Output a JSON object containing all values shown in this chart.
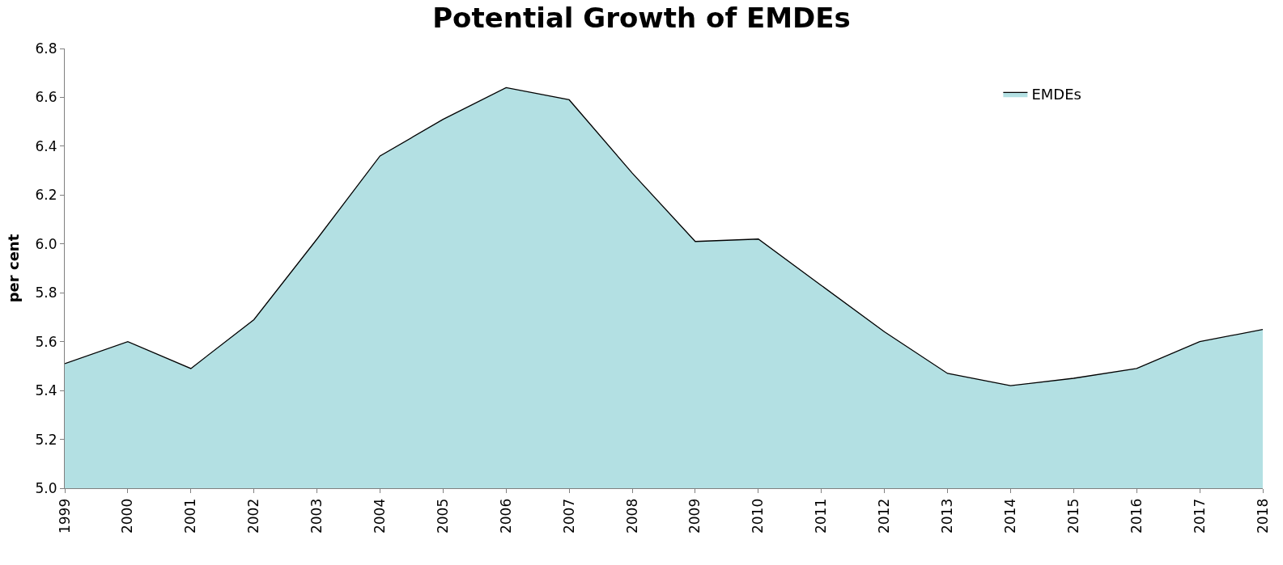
{
  "chart_data": {
    "type": "area",
    "title": "Potential Growth of EMDEs",
    "ylabel": "per cent",
    "categories": [
      "1999",
      "2000",
      "2001",
      "2002",
      "2003",
      "2004",
      "2005",
      "2006",
      "2007",
      "2008",
      "2009",
      "2010",
      "2011",
      "2012",
      "2013",
      "2014",
      "2015",
      "2016",
      "2017",
      "2018"
    ],
    "series": [
      {
        "name": "EMDEs",
        "color": "#b3e0e3",
        "values": [
          5.51,
          5.6,
          5.49,
          5.69,
          6.02,
          6.36,
          6.51,
          6.64,
          6.59,
          6.29,
          6.01,
          6.02,
          5.83,
          5.64,
          5.47,
          5.42,
          5.45,
          5.49,
          5.6,
          5.65
        ]
      }
    ],
    "ylim": [
      5.0,
      6.8
    ],
    "yticks": [
      {
        "value": 5.0,
        "label": "5.0"
      },
      {
        "value": 5.2,
        "label": "5.2"
      },
      {
        "value": 5.4,
        "label": "5.4"
      },
      {
        "value": 5.6,
        "label": "5.6"
      },
      {
        "value": 5.8,
        "label": "5.8"
      },
      {
        "value": 6.0,
        "label": "6.0"
      },
      {
        "value": 6.2,
        "label": "6.2"
      },
      {
        "value": 6.4,
        "label": "6.4"
      },
      {
        "value": 6.6,
        "label": "6.6"
      },
      {
        "value": 6.8,
        "label": "6.8"
      }
    ],
    "legend": "top right"
  }
}
